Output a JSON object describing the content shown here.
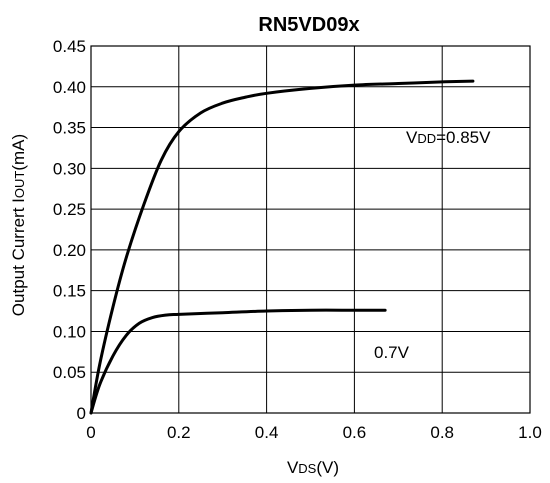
{
  "chart_data": {
    "type": "line",
    "title": "RN5VD09x",
    "xlabel": {
      "prefix": "V",
      "subscript": "DS",
      "suffix": "(V)"
    },
    "ylabel": {
      "prefix": "Output Currert I",
      "subscript": "OUT",
      "suffix": "(mA)"
    },
    "xlim": [
      0,
      1.0
    ],
    "ylim": [
      0,
      0.45
    ],
    "xticks": [
      "0",
      "0.2",
      "0.4",
      "0.6",
      "0.8",
      "1.0"
    ],
    "yticks": [
      "0",
      "0.05",
      "0.10",
      "0.15",
      "0.20",
      "0.25",
      "0.30",
      "0.35",
      "0.40",
      "0.45"
    ],
    "grid": true,
    "series": [
      {
        "name": "VDD=0.85V",
        "label_parts": {
          "prefix": "V",
          "subscript": "DD",
          "suffix": "=0.85V"
        },
        "x": [
          0,
          0.02,
          0.05,
          0.08,
          0.12,
          0.16,
          0.2,
          0.25,
          0.3,
          0.35,
          0.4,
          0.5,
          0.6,
          0.7,
          0.8,
          0.87
        ],
        "y": [
          0,
          0.06,
          0.13,
          0.19,
          0.255,
          0.31,
          0.345,
          0.368,
          0.38,
          0.387,
          0.392,
          0.398,
          0.402,
          0.404,
          0.406,
          0.407
        ]
      },
      {
        "name": "0.7V",
        "label_parts": {
          "prefix": "",
          "subscript": "",
          "suffix": "0.7V"
        },
        "x": [
          0,
          0.02,
          0.05,
          0.08,
          0.11,
          0.14,
          0.17,
          0.2,
          0.3,
          0.4,
          0.5,
          0.6,
          0.67
        ],
        "y": [
          0,
          0.035,
          0.07,
          0.095,
          0.11,
          0.117,
          0.12,
          0.121,
          0.123,
          0.125,
          0.126,
          0.126,
          0.126
        ]
      }
    ],
    "colors": {
      "line": "#000000",
      "grid": "#000000"
    }
  }
}
